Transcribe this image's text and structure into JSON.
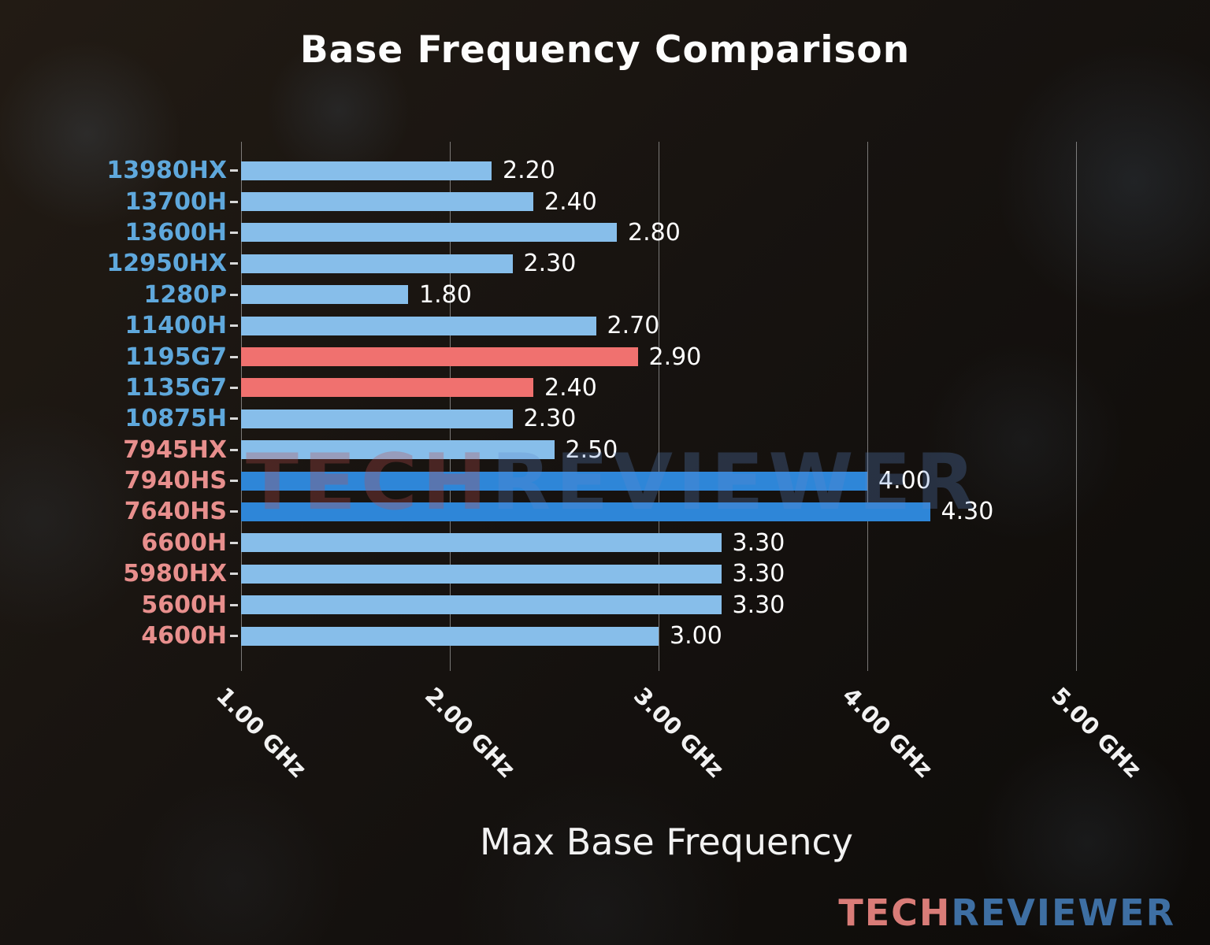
{
  "title": "Base Frequency Comparison",
  "xlabel": "Max Base Frequency",
  "watermark": {
    "tech": "TECH",
    "reviewer": "REVIEWER"
  },
  "logo": {
    "tech": "TECH",
    "reviewer": "REVIEWER"
  },
  "colors": {
    "bar_light_blue": "#87beea",
    "bar_dark_blue": "#2e86d8",
    "bar_salmon": "#f0716f",
    "label_intel_blue": "#5fa8dc",
    "label_amd_salmon": "#e88f8d",
    "value_text": "#ffffff",
    "gridline": "#cdcdcd"
  },
  "chart_data": {
    "type": "bar",
    "orientation": "horizontal",
    "title": "Base Frequency Comparison",
    "xlabel": "Max Base Frequency",
    "xlim": [
      1.0,
      5.1
    ],
    "xticks": [
      1.0,
      2.0,
      3.0,
      4.0,
      5.0
    ],
    "xtick_labels": [
      "1.00 GHz",
      "2.00 GHz",
      "3.00 GHz",
      "4.00 GHz",
      "5.00 GHz"
    ],
    "grid": true,
    "legend": false,
    "categories": [
      "13980HX",
      "13700H",
      "13600H",
      "12950HX",
      "1280P",
      "11400H",
      "1195G7",
      "1135G7",
      "10875H",
      "7945HX",
      "7940HS",
      "7640HS",
      "6600H",
      "5980HX",
      "5600H",
      "4600H"
    ],
    "values": [
      2.2,
      2.4,
      2.8,
      2.3,
      1.8,
      2.7,
      2.9,
      2.4,
      2.3,
      2.5,
      4.0,
      4.3,
      3.3,
      3.3,
      3.3,
      3.0
    ],
    "bars": [
      {
        "label": "13980HX",
        "value": 2.2,
        "value_label": "2.20",
        "bar_color": "#87beea",
        "label_color": "#5fa8dc"
      },
      {
        "label": "13700H",
        "value": 2.4,
        "value_label": "2.40",
        "bar_color": "#87beea",
        "label_color": "#5fa8dc"
      },
      {
        "label": "13600H",
        "value": 2.8,
        "value_label": "2.80",
        "bar_color": "#87beea",
        "label_color": "#5fa8dc"
      },
      {
        "label": "12950HX",
        "value": 2.3,
        "value_label": "2.30",
        "bar_color": "#87beea",
        "label_color": "#5fa8dc"
      },
      {
        "label": "1280P",
        "value": 1.8,
        "value_label": "1.80",
        "bar_color": "#87beea",
        "label_color": "#5fa8dc"
      },
      {
        "label": "11400H",
        "value": 2.7,
        "value_label": "2.70",
        "bar_color": "#87beea",
        "label_color": "#5fa8dc"
      },
      {
        "label": "1195G7",
        "value": 2.9,
        "value_label": "2.90",
        "bar_color": "#f0716f",
        "label_color": "#5fa8dc"
      },
      {
        "label": "1135G7",
        "value": 2.4,
        "value_label": "2.40",
        "bar_color": "#f0716f",
        "label_color": "#5fa8dc"
      },
      {
        "label": "10875H",
        "value": 2.3,
        "value_label": "2.30",
        "bar_color": "#87beea",
        "label_color": "#5fa8dc"
      },
      {
        "label": "7945HX",
        "value": 2.5,
        "value_label": "2.50",
        "bar_color": "#87beea",
        "label_color": "#e88f8d"
      },
      {
        "label": "7940HS",
        "value": 4.0,
        "value_label": "4.00",
        "bar_color": "#2e86d8",
        "label_color": "#e88f8d"
      },
      {
        "label": "7640HS",
        "value": 4.3,
        "value_label": "4.30",
        "bar_color": "#2e86d8",
        "label_color": "#e88f8d"
      },
      {
        "label": "6600H",
        "value": 3.3,
        "value_label": "3.30",
        "bar_color": "#87beea",
        "label_color": "#e88f8d"
      },
      {
        "label": "5980HX",
        "value": 3.3,
        "value_label": "3.30",
        "bar_color": "#87beea",
        "label_color": "#e88f8d"
      },
      {
        "label": "5600H",
        "value": 3.3,
        "value_label": "3.30",
        "bar_color": "#87beea",
        "label_color": "#e88f8d"
      },
      {
        "label": "4600H",
        "value": 3.0,
        "value_label": "3.00",
        "bar_color": "#87beea",
        "label_color": "#e88f8d"
      }
    ]
  }
}
